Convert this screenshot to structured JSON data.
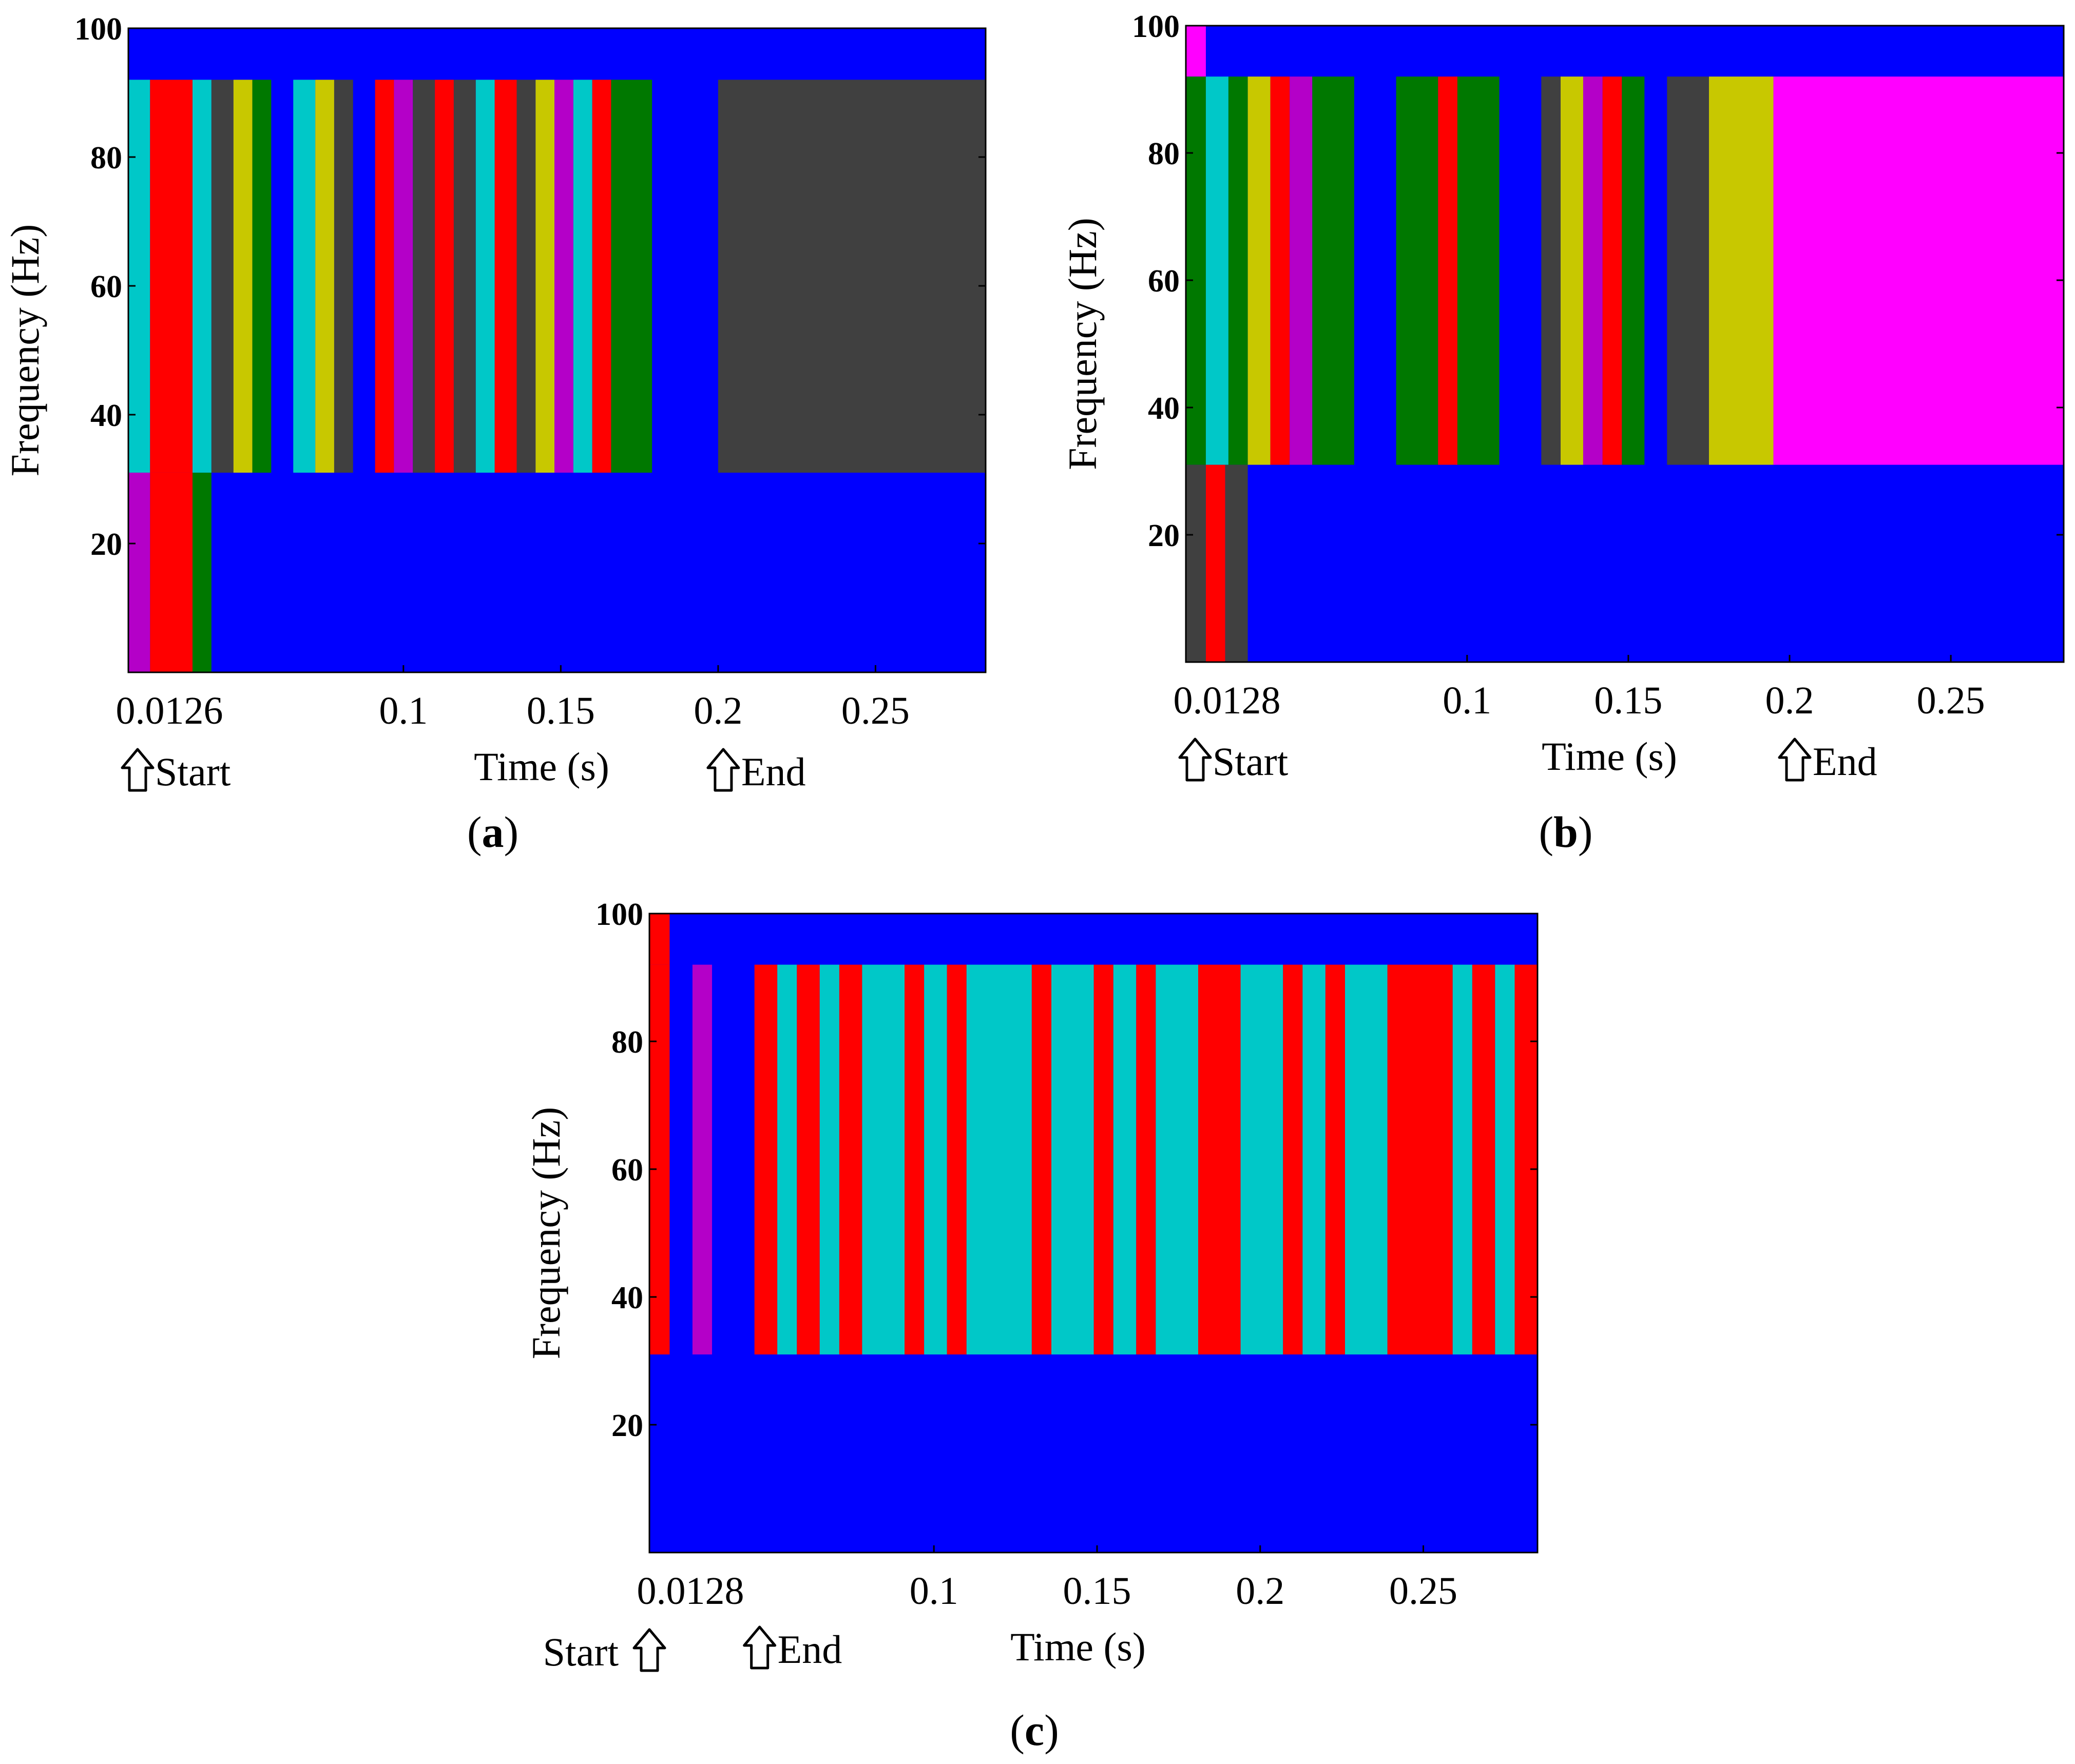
{
  "colors": {
    "blue": "#0000ff",
    "cyan": "#00c8c8",
    "red": "#ff0000",
    "magenta": "#b400c8",
    "pink": "#ff00ff",
    "yellow": "#c8c800",
    "green": "#007800",
    "gray": "#404040"
  },
  "chart_data": [
    {
      "id": "a",
      "type": "heatmap",
      "panel_label": "a",
      "xlabel": "Time (s)",
      "ylabel": "Frequency (Hz)",
      "xlim": [
        0.0126,
        0.285
      ],
      "ylim": [
        0,
        100
      ],
      "yticks": [
        20,
        40,
        60,
        80,
        100
      ],
      "xticks": [
        {
          "v": 0.0126,
          "t": "0.0126"
        },
        {
          "v": 0.1,
          "t": "0.1"
        },
        {
          "v": 0.15,
          "t": "0.15"
        },
        {
          "v": 0.2,
          "t": "0.2"
        },
        {
          "v": 0.25,
          "t": "0.25"
        }
      ],
      "background": "blue",
      "start": {
        "t": 0.0126,
        "label": "Start"
      },
      "end": {
        "t": 0.2,
        "label": "End"
      },
      "bands": [
        {
          "f0": 31,
          "f1": 92,
          "segments": [
            {
              "t0": 0.0126,
              "t1": 0.0195,
              "c": "cyan"
            },
            {
              "t0": 0.0195,
              "t1": 0.033,
              "c": "red"
            },
            {
              "t0": 0.033,
              "t1": 0.039,
              "c": "cyan"
            },
            {
              "t0": 0.039,
              "t1": 0.046,
              "c": "gray"
            },
            {
              "t0": 0.046,
              "t1": 0.052,
              "c": "yellow"
            },
            {
              "t0": 0.052,
              "t1": 0.058,
              "c": "green"
            },
            {
              "t0": 0.065,
              "t1": 0.072,
              "c": "cyan"
            },
            {
              "t0": 0.072,
              "t1": 0.078,
              "c": "yellow"
            },
            {
              "t0": 0.078,
              "t1": 0.084,
              "c": "gray"
            },
            {
              "t0": 0.091,
              "t1": 0.097,
              "c": "red"
            },
            {
              "t0": 0.097,
              "t1": 0.103,
              "c": "magenta"
            },
            {
              "t0": 0.103,
              "t1": 0.11,
              "c": "gray"
            },
            {
              "t0": 0.11,
              "t1": 0.116,
              "c": "red"
            },
            {
              "t0": 0.116,
              "t1": 0.123,
              "c": "gray"
            },
            {
              "t0": 0.123,
              "t1": 0.129,
              "c": "cyan"
            },
            {
              "t0": 0.129,
              "t1": 0.136,
              "c": "red"
            },
            {
              "t0": 0.136,
              "t1": 0.142,
              "c": "gray"
            },
            {
              "t0": 0.142,
              "t1": 0.148,
              "c": "yellow"
            },
            {
              "t0": 0.148,
              "t1": 0.154,
              "c": "magenta"
            },
            {
              "t0": 0.154,
              "t1": 0.16,
              "c": "cyan"
            },
            {
              "t0": 0.16,
              "t1": 0.166,
              "c": "red"
            },
            {
              "t0": 0.166,
              "t1": 0.179,
              "c": "green"
            },
            {
              "t0": 0.2,
              "t1": 0.285,
              "c": "gray"
            }
          ]
        },
        {
          "f0": 0,
          "f1": 31,
          "segments": [
            {
              "t0": 0.0126,
              "t1": 0.0195,
              "c": "magenta"
            },
            {
              "t0": 0.0195,
              "t1": 0.033,
              "c": "red"
            },
            {
              "t0": 0.033,
              "t1": 0.039,
              "c": "green"
            }
          ]
        }
      ]
    },
    {
      "id": "b",
      "type": "heatmap",
      "panel_label": "b",
      "xlabel": "Time (s)",
      "ylabel": "Frequency (Hz)",
      "xlim": [
        0.0128,
        0.285
      ],
      "ylim": [
        0,
        100
      ],
      "yticks": [
        20,
        40,
        60,
        80,
        100
      ],
      "xticks": [
        {
          "v": 0.0128,
          "t": "0.0128"
        },
        {
          "v": 0.1,
          "t": "0.1"
        },
        {
          "v": 0.15,
          "t": "0.15"
        },
        {
          "v": 0.2,
          "t": "0.2"
        },
        {
          "v": 0.25,
          "t": "0.25"
        }
      ],
      "background": "blue",
      "start": {
        "t": 0.0128,
        "label": "Start"
      },
      "end": {
        "t": 0.2,
        "label": "End"
      },
      "bands": [
        {
          "f0": 92,
          "f1": 100,
          "segments": [
            {
              "t0": 0.0128,
              "t1": 0.019,
              "c": "pink"
            }
          ]
        },
        {
          "f0": 31,
          "f1": 92,
          "segments": [
            {
              "t0": 0.0128,
              "t1": 0.019,
              "c": "green"
            },
            {
              "t0": 0.019,
              "t1": 0.026,
              "c": "cyan"
            },
            {
              "t0": 0.026,
              "t1": 0.032,
              "c": "green"
            },
            {
              "t0": 0.032,
              "t1": 0.039,
              "c": "yellow"
            },
            {
              "t0": 0.039,
              "t1": 0.045,
              "c": "red"
            },
            {
              "t0": 0.045,
              "t1": 0.052,
              "c": "magenta"
            },
            {
              "t0": 0.052,
              "t1": 0.065,
              "c": "green"
            },
            {
              "t0": 0.078,
              "t1": 0.091,
              "c": "green"
            },
            {
              "t0": 0.091,
              "t1": 0.097,
              "c": "red"
            },
            {
              "t0": 0.097,
              "t1": 0.11,
              "c": "green"
            },
            {
              "t0": 0.123,
              "t1": 0.129,
              "c": "gray"
            },
            {
              "t0": 0.129,
              "t1": 0.136,
              "c": "yellow"
            },
            {
              "t0": 0.136,
              "t1": 0.142,
              "c": "magenta"
            },
            {
              "t0": 0.142,
              "t1": 0.148,
              "c": "red"
            },
            {
              "t0": 0.148,
              "t1": 0.155,
              "c": "green"
            },
            {
              "t0": 0.162,
              "t1": 0.175,
              "c": "gray"
            },
            {
              "t0": 0.175,
              "t1": 0.195,
              "c": "yellow"
            },
            {
              "t0": 0.195,
              "t1": 0.285,
              "c": "pink"
            }
          ]
        },
        {
          "f0": 0,
          "f1": 31,
          "segments": [
            {
              "t0": 0.0128,
              "t1": 0.019,
              "c": "gray"
            },
            {
              "t0": 0.019,
              "t1": 0.025,
              "c": "red"
            },
            {
              "t0": 0.025,
              "t1": 0.032,
              "c": "gray"
            }
          ]
        }
      ]
    },
    {
      "id": "c",
      "type": "heatmap",
      "panel_label": "c",
      "xlabel": "Time (s)",
      "ylabel": "Frequency (Hz)",
      "xlim": [
        0.0128,
        0.285
      ],
      "ylim": [
        0,
        100
      ],
      "yticks": [
        20,
        40,
        60,
        80,
        100
      ],
      "xticks": [
        {
          "v": 0.0128,
          "t": "0.0128"
        },
        {
          "v": 0.1,
          "t": "0.1"
        },
        {
          "v": 0.15,
          "t": "0.15"
        },
        {
          "v": 0.2,
          "t": "0.2"
        },
        {
          "v": 0.25,
          "t": "0.25"
        }
      ],
      "background": "blue",
      "start": {
        "t": 0.0128,
        "label": "Start"
      },
      "end": {
        "t": 0.045,
        "label": "End"
      },
      "bands": [
        {
          "f0": 92,
          "f1": 100,
          "segments": [
            {
              "t0": 0.0128,
              "t1": 0.019,
              "c": "red"
            }
          ]
        },
        {
          "f0": 31,
          "f1": 92,
          "segments": [
            {
              "t0": 0.0128,
              "t1": 0.019,
              "c": "red"
            },
            {
              "t0": 0.026,
              "t1": 0.032,
              "c": "magenta"
            },
            {
              "t0": 0.045,
              "t1": 0.052,
              "c": "red"
            },
            {
              "t0": 0.052,
              "t1": 0.058,
              "c": "cyan"
            },
            {
              "t0": 0.058,
              "t1": 0.065,
              "c": "red"
            },
            {
              "t0": 0.065,
              "t1": 0.071,
              "c": "cyan"
            },
            {
              "t0": 0.071,
              "t1": 0.078,
              "c": "red"
            },
            {
              "t0": 0.078,
              "t1": 0.091,
              "c": "cyan"
            },
            {
              "t0": 0.091,
              "t1": 0.097,
              "c": "red"
            },
            {
              "t0": 0.097,
              "t1": 0.104,
              "c": "cyan"
            },
            {
              "t0": 0.104,
              "t1": 0.11,
              "c": "red"
            },
            {
              "t0": 0.11,
              "t1": 0.13,
              "c": "cyan"
            },
            {
              "t0": 0.13,
              "t1": 0.136,
              "c": "red"
            },
            {
              "t0": 0.136,
              "t1": 0.149,
              "c": "cyan"
            },
            {
              "t0": 0.149,
              "t1": 0.155,
              "c": "red"
            },
            {
              "t0": 0.155,
              "t1": 0.162,
              "c": "cyan"
            },
            {
              "t0": 0.162,
              "t1": 0.168,
              "c": "red"
            },
            {
              "t0": 0.168,
              "t1": 0.181,
              "c": "cyan"
            },
            {
              "t0": 0.181,
              "t1": 0.194,
              "c": "red"
            },
            {
              "t0": 0.194,
              "t1": 0.207,
              "c": "cyan"
            },
            {
              "t0": 0.207,
              "t1": 0.213,
              "c": "red"
            },
            {
              "t0": 0.213,
              "t1": 0.22,
              "c": "cyan"
            },
            {
              "t0": 0.22,
              "t1": 0.226,
              "c": "red"
            },
            {
              "t0": 0.226,
              "t1": 0.239,
              "c": "cyan"
            },
            {
              "t0": 0.239,
              "t1": 0.259,
              "c": "red"
            },
            {
              "t0": 0.259,
              "t1": 0.265,
              "c": "cyan"
            },
            {
              "t0": 0.265,
              "t1": 0.272,
              "c": "red"
            },
            {
              "t0": 0.272,
              "t1": 0.278,
              "c": "cyan"
            },
            {
              "t0": 0.278,
              "t1": 0.285,
              "c": "red"
            }
          ]
        }
      ]
    }
  ]
}
